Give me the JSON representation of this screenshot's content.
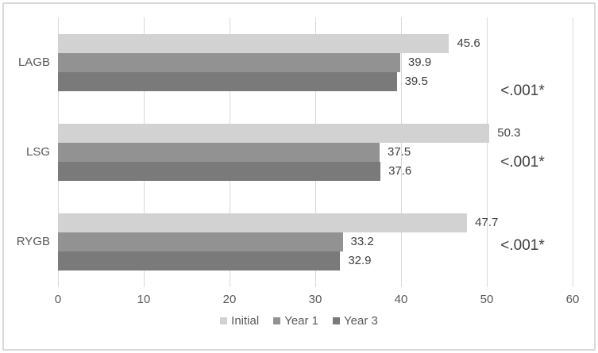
{
  "chart_data": {
    "type": "bar",
    "orientation": "horizontal",
    "title": "",
    "xlabel": "",
    "ylabel": "",
    "categories": [
      "LAGB",
      "LSG",
      "RYGB"
    ],
    "series": [
      {
        "name": "Initial",
        "color": "#d2d2d2",
        "values": [
          45.6,
          50.3,
          47.7
        ]
      },
      {
        "name": "Year 1",
        "color": "#929292",
        "values": [
          39.9,
          37.5,
          33.2
        ]
      },
      {
        "name": "Year 3",
        "color": "#7a7a7a",
        "values": [
          39.5,
          37.6,
          32.9
        ]
      }
    ],
    "value_labels": true,
    "annotations": [
      {
        "category": "LAGB",
        "text": "<.001*"
      },
      {
        "category": "LSG",
        "text": "<.001*"
      },
      {
        "category": "RYGB",
        "text": "<.001*"
      }
    ],
    "xlim": [
      0,
      60
    ],
    "xticks": [
      0,
      10,
      20,
      30,
      40,
      50,
      60
    ],
    "grid": true,
    "legend_position": "bottom"
  },
  "palette": {
    "gridline": "#d9d9d9",
    "frame_border": "#d9d9d9",
    "axis_text": "#595959",
    "category_text": "#595959",
    "value_text": "#404040",
    "annotation_text": "#404040",
    "legend_text": "#595959",
    "background": "#ffffff"
  }
}
